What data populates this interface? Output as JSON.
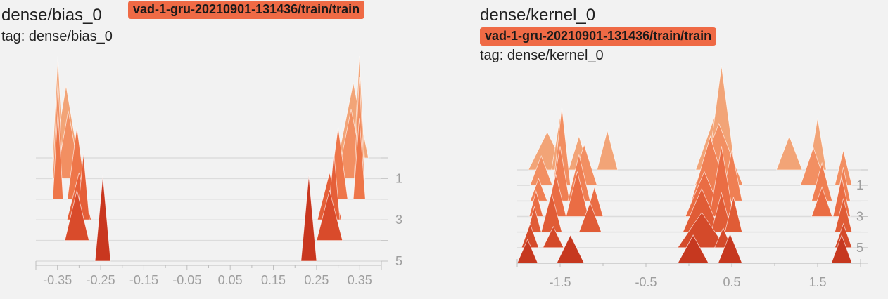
{
  "charts": [
    {
      "title": "dense/bias_0",
      "run": "vad-1-gru-20210901-131436/train/train",
      "tag_label": "tag: dense/bias_0"
    },
    {
      "title": "dense/kernel_0",
      "run": "vad-1-gru-20210901-131436/train/train",
      "tag_label": "tag: dense/kernel_0"
    }
  ],
  "chart_data": [
    {
      "type": "area",
      "mode": "offset histogram",
      "title": "dense/bias_0",
      "x_ticks": [
        "-0.35",
        "-0.25",
        "-0.15",
        "-0.05",
        "0.05",
        "0.15",
        "0.25",
        "0.35"
      ],
      "x_tick_values": [
        -0.35,
        -0.25,
        -0.15,
        -0.05,
        0.05,
        0.15,
        0.25,
        0.35
      ],
      "xlim": [
        -0.4,
        0.4
      ],
      "step_ticks": [
        "1",
        "3",
        "5"
      ],
      "step_tick_values": [
        1,
        3,
        5
      ],
      "steps": [
        0,
        1,
        2,
        3,
        4,
        5
      ],
      "colors": [
        "#f2a477",
        "#f28f62",
        "#ee7649",
        "#e55f38",
        "#d94b2b",
        "#c9371f"
      ],
      "series": [
        {
          "step": 0,
          "peaks": [
            {
              "x": -0.349,
              "half_width": 0.012,
              "height": 0.69
            },
            {
              "x": -0.33,
              "half_width": 0.028,
              "height": 0.49
            },
            {
              "x": 0.335,
              "half_width": 0.035,
              "height": 0.51
            },
            {
              "x": 0.349,
              "half_width": 0.012,
              "height": 0.69
            }
          ]
        },
        {
          "step": 1,
          "peaks": [
            {
              "x": -0.349,
              "half_width": 0.012,
              "height": 0.67
            },
            {
              "x": -0.325,
              "half_width": 0.028,
              "height": 0.46
            },
            {
              "x": 0.33,
              "half_width": 0.032,
              "height": 0.47
            },
            {
              "x": 0.349,
              "half_width": 0.012,
              "height": 0.69
            }
          ]
        },
        {
          "step": 2,
          "peaks": [
            {
              "x": -0.349,
              "half_width": 0.012,
              "height": 0.6
            },
            {
              "x": -0.305,
              "half_width": 0.022,
              "height": 0.49
            },
            {
              "x": 0.3,
              "half_width": 0.022,
              "height": 0.49
            },
            {
              "x": 0.349,
              "half_width": 0.014,
              "height": 0.55
            }
          ]
        },
        {
          "step": 3,
          "peaks": [
            {
              "x": -0.3,
              "half_width": 0.028,
              "height": 0.32
            },
            {
              "x": -0.29,
              "half_width": 0.014,
              "height": 0.45
            },
            {
              "x": 0.28,
              "half_width": 0.028,
              "height": 0.32
            },
            {
              "x": 0.29,
              "half_width": 0.014,
              "height": 0.46
            }
          ]
        },
        {
          "step": 4,
          "peaks": [
            {
              "x": -0.305,
              "half_width": 0.028,
              "height": 0.34
            },
            {
              "x": 0.28,
              "half_width": 0.03,
              "height": 0.34
            }
          ]
        },
        {
          "step": 5,
          "peaks": [
            {
              "x": -0.245,
              "half_width": 0.018,
              "height": 0.58
            },
            {
              "x": 0.232,
              "half_width": 0.018,
              "height": 0.58
            }
          ]
        }
      ]
    },
    {
      "type": "area",
      "mode": "offset histogram",
      "title": "dense/kernel_0",
      "x_ticks": [
        "-1.5",
        "-0.5",
        "0.5",
        "1.5"
      ],
      "x_tick_values": [
        -1.5,
        -0.5,
        0.5,
        1.5
      ],
      "xlim": [
        -2.0,
        2.0
      ],
      "step_ticks": [
        "1",
        "3",
        "5"
      ],
      "step_tick_values": [
        1,
        3,
        5
      ],
      "steps": [
        0,
        1,
        2,
        3,
        4,
        5,
        6
      ],
      "colors": [
        "#f2a477",
        "#f28f62",
        "#ef7f53",
        "#ea6d44",
        "#e05c36",
        "#d44a2a",
        "#c6381f"
      ],
      "series": [
        {
          "step": 0,
          "peaks": [
            {
              "x": -1.65,
              "half_width": 0.22,
              "height": 0.27
            },
            {
              "x": -1.5,
              "half_width": 0.1,
              "height": 0.38
            },
            {
              "x": -1.28,
              "half_width": 0.12,
              "height": 0.24
            },
            {
              "x": -0.95,
              "half_width": 0.12,
              "height": 0.28
            },
            {
              "x": 0.3,
              "half_width": 0.22,
              "height": 0.38
            },
            {
              "x": 0.38,
              "half_width": 0.16,
              "height": 0.74
            },
            {
              "x": 1.17,
              "half_width": 0.15,
              "height": 0.24
            },
            {
              "x": 1.5,
              "half_width": 0.1,
              "height": 0.37
            }
          ]
        },
        {
          "step": 1,
          "peaks": [
            {
              "x": -1.72,
              "half_width": 0.13,
              "height": 0.21
            },
            {
              "x": -1.48,
              "half_width": 0.1,
              "height": 0.56
            },
            {
              "x": -1.22,
              "half_width": 0.15,
              "height": 0.29
            },
            {
              "x": 0.35,
              "half_width": 0.28,
              "height": 0.44
            },
            {
              "x": 1.45,
              "half_width": 0.15,
              "height": 0.27
            },
            {
              "x": 1.8,
              "half_width": 0.1,
              "height": 0.25
            }
          ]
        },
        {
          "step": 2,
          "peaks": [
            {
              "x": -1.75,
              "half_width": 0.1,
              "height": 0.16
            },
            {
              "x": -1.5,
              "half_width": 0.11,
              "height": 0.39
            },
            {
              "x": -1.28,
              "half_width": 0.13,
              "height": 0.33
            },
            {
              "x": 0.25,
              "half_width": 0.22,
              "height": 0.46
            },
            {
              "x": 0.5,
              "half_width": 0.12,
              "height": 0.36
            },
            {
              "x": 1.55,
              "half_width": 0.12,
              "height": 0.27
            },
            {
              "x": 1.8,
              "half_width": 0.08,
              "height": 0.24
            }
          ]
        },
        {
          "step": 3,
          "peaks": [
            {
              "x": -1.78,
              "half_width": 0.08,
              "height": 0.18
            },
            {
              "x": -1.55,
              "half_width": 0.12,
              "height": 0.3
            },
            {
              "x": -1.3,
              "half_width": 0.13,
              "height": 0.32
            },
            {
              "x": -1.1,
              "half_width": 0.1,
              "height": 0.21
            },
            {
              "x": 0.18,
              "half_width": 0.22,
              "height": 0.32
            },
            {
              "x": 0.38,
              "half_width": 0.14,
              "height": 0.5
            },
            {
              "x": 1.55,
              "half_width": 0.12,
              "height": 0.21
            },
            {
              "x": 1.78,
              "half_width": 0.1,
              "height": 0.28
            }
          ]
        },
        {
          "step": 4,
          "peaks": [
            {
              "x": -1.8,
              "half_width": 0.08,
              "height": 0.18
            },
            {
              "x": -1.6,
              "half_width": 0.12,
              "height": 0.28
            },
            {
              "x": -1.15,
              "half_width": 0.13,
              "height": 0.21
            },
            {
              "x": 0.15,
              "half_width": 0.22,
              "height": 0.31
            },
            {
              "x": 0.38,
              "half_width": 0.12,
              "height": 0.28
            },
            {
              "x": 0.52,
              "half_width": 0.1,
              "height": 0.25
            },
            {
              "x": 1.8,
              "half_width": 0.1,
              "height": 0.24
            }
          ]
        },
        {
          "step": 5,
          "peaks": [
            {
              "x": -1.85,
              "half_width": 0.1,
              "height": 0.17
            },
            {
              "x": -1.58,
              "half_width": 0.12,
              "height": 0.15
            },
            {
              "x": 0.15,
              "half_width": 0.28,
              "height": 0.25
            },
            {
              "x": 0.4,
              "half_width": 0.1,
              "height": 0.14
            },
            {
              "x": 1.8,
              "half_width": 0.1,
              "height": 0.17
            }
          ]
        },
        {
          "step": 6,
          "peaks": [
            {
              "x": -1.88,
              "half_width": 0.12,
              "height": 0.17
            },
            {
              "x": -1.38,
              "half_width": 0.16,
              "height": 0.2
            },
            {
              "x": 0.05,
              "half_width": 0.18,
              "height": 0.2
            },
            {
              "x": 0.48,
              "half_width": 0.14,
              "height": 0.21
            },
            {
              "x": 1.78,
              "half_width": 0.12,
              "height": 0.2
            }
          ]
        }
      ]
    }
  ]
}
